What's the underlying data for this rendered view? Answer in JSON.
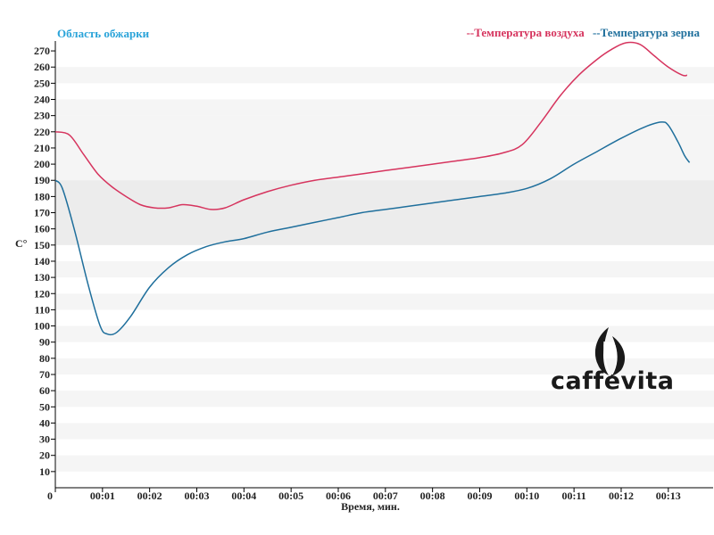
{
  "colors": {
    "air": "#d6345e",
    "bean": "#1f6f9c",
    "title": "#29a3d9",
    "band_light": "#f5f5f5",
    "band_roast": "#ececec"
  },
  "logo": {
    "text": "caffevita",
    "icon": "flame-leaf-icon"
  },
  "chart_data": {
    "type": "line",
    "title": "Область обжарки",
    "xlabel": "Время, мин.",
    "ylabel": "C°",
    "ylim": [
      0,
      275
    ],
    "xlim": [
      0,
      13.95
    ],
    "x_unit": "minutes",
    "roast_zone": [
      150,
      190
    ],
    "grid": false,
    "legend_position": "top-right",
    "y_ticks": [
      10,
      20,
      30,
      40,
      50,
      60,
      70,
      80,
      90,
      100,
      110,
      120,
      130,
      140,
      150,
      160,
      170,
      180,
      190,
      200,
      210,
      220,
      230,
      240,
      250,
      260,
      270
    ],
    "x_ticks": [
      {
        "value": 0,
        "label": "0"
      },
      {
        "value": 1,
        "label": "00:01"
      },
      {
        "value": 2,
        "label": "00:02"
      },
      {
        "value": 3,
        "label": "00:03"
      },
      {
        "value": 4,
        "label": "00:04"
      },
      {
        "value": 5,
        "label": "00:05"
      },
      {
        "value": 6,
        "label": "00:06"
      },
      {
        "value": 7,
        "label": "00:07"
      },
      {
        "value": 8,
        "label": "00:08"
      },
      {
        "value": 9,
        "label": "00:09"
      },
      {
        "value": 10,
        "label": "00:10"
      },
      {
        "value": 11,
        "label": "00:11"
      },
      {
        "value": 12,
        "label": "00:12"
      },
      {
        "value": 13,
        "label": "00:13"
      }
    ],
    "series": [
      {
        "name": "--Температура воздуха",
        "color": "#d6345e",
        "points": [
          [
            0,
            220
          ],
          [
            0.3,
            218
          ],
          [
            0.6,
            206
          ],
          [
            0.9,
            194
          ],
          [
            1.2,
            186
          ],
          [
            1.5,
            180
          ],
          [
            1.8,
            175
          ],
          [
            2.1,
            173
          ],
          [
            2.4,
            173
          ],
          [
            2.7,
            175
          ],
          [
            3.0,
            174
          ],
          [
            3.3,
            172
          ],
          [
            3.6,
            173
          ],
          [
            4.0,
            178
          ],
          [
            4.5,
            183
          ],
          [
            5.0,
            187
          ],
          [
            5.5,
            190
          ],
          [
            6.0,
            192
          ],
          [
            6.5,
            194
          ],
          [
            7.0,
            196
          ],
          [
            7.5,
            198
          ],
          [
            8.0,
            200
          ],
          [
            8.5,
            202
          ],
          [
            9.0,
            204
          ],
          [
            9.5,
            207
          ],
          [
            9.9,
            212
          ],
          [
            10.3,
            226
          ],
          [
            10.7,
            242
          ],
          [
            11.1,
            255
          ],
          [
            11.5,
            265
          ],
          [
            11.8,
            271
          ],
          [
            12.1,
            275
          ],
          [
            12.4,
            274
          ],
          [
            12.7,
            267
          ],
          [
            13.0,
            260
          ],
          [
            13.3,
            255
          ],
          [
            13.4,
            255
          ]
        ]
      },
      {
        "name": "--Температура зерна",
        "color": "#1f6f9c",
        "points": [
          [
            0,
            190
          ],
          [
            0.15,
            185
          ],
          [
            0.4,
            160
          ],
          [
            0.7,
            125
          ],
          [
            0.95,
            100
          ],
          [
            1.1,
            95
          ],
          [
            1.3,
            96
          ],
          [
            1.6,
            106
          ],
          [
            2.0,
            124
          ],
          [
            2.4,
            136
          ],
          [
            2.8,
            144
          ],
          [
            3.2,
            149
          ],
          [
            3.6,
            152
          ],
          [
            4.0,
            154
          ],
          [
            4.5,
            158
          ],
          [
            5.0,
            161
          ],
          [
            5.5,
            164
          ],
          [
            6.0,
            167
          ],
          [
            6.5,
            170
          ],
          [
            7.0,
            172
          ],
          [
            7.5,
            174
          ],
          [
            8.0,
            176
          ],
          [
            8.5,
            178
          ],
          [
            9.0,
            180
          ],
          [
            9.5,
            182
          ],
          [
            10.0,
            185
          ],
          [
            10.5,
            191
          ],
          [
            11.0,
            200
          ],
          [
            11.5,
            208
          ],
          [
            12.0,
            216
          ],
          [
            12.5,
            223
          ],
          [
            12.85,
            226
          ],
          [
            13.0,
            224
          ],
          [
            13.2,
            214
          ],
          [
            13.35,
            205
          ],
          [
            13.45,
            201
          ]
        ]
      }
    ]
  }
}
